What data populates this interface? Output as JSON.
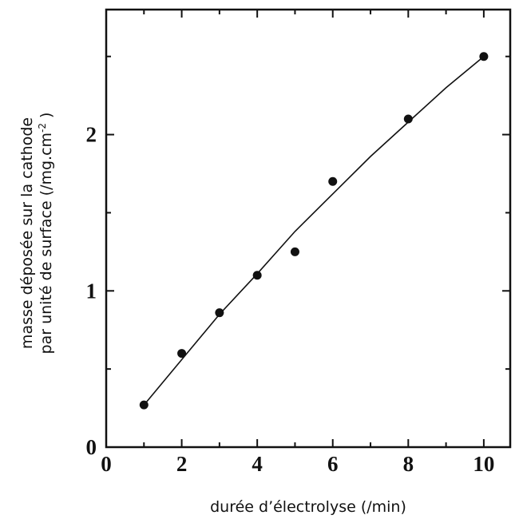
{
  "chart_data": {
    "type": "scatter",
    "xlabel": "durée d’électrolyse (/min)",
    "ylabel_line1": "masse déposée sur la cathode",
    "ylabel_line2_main": "par unité de surface (/mg.cm",
    "ylabel_line2_sup": "-2",
    "ylabel_line2_end": " )",
    "xlim": [
      0,
      10.7
    ],
    "ylim": [
      0,
      2.8
    ],
    "x_ticks": [
      0,
      2,
      4,
      6,
      8,
      10
    ],
    "y_ticks": [
      0,
      1,
      2
    ],
    "x_tick_labels": [
      "0",
      "2",
      "4",
      "6",
      "8",
      "10"
    ],
    "y_tick_labels": [
      "0",
      "1",
      "2"
    ],
    "grid": false,
    "points": [
      {
        "x": 1,
        "y": 0.27
      },
      {
        "x": 2,
        "y": 0.6
      },
      {
        "x": 3,
        "y": 0.86
      },
      {
        "x": 4,
        "y": 1.1
      },
      {
        "x": 5,
        "y": 1.25
      },
      {
        "x": 6,
        "y": 1.7
      },
      {
        "x": 8,
        "y": 2.1
      },
      {
        "x": 10,
        "y": 2.5
      }
    ],
    "fit_curve": [
      {
        "x": 1,
        "y": 0.27
      },
      {
        "x": 2,
        "y": 0.56
      },
      {
        "x": 3,
        "y": 0.85
      },
      {
        "x": 4,
        "y": 1.11
      },
      {
        "x": 5,
        "y": 1.38
      },
      {
        "x": 6,
        "y": 1.62
      },
      {
        "x": 7,
        "y": 1.86
      },
      {
        "x": 8,
        "y": 2.08
      },
      {
        "x": 9,
        "y": 2.3
      },
      {
        "x": 10,
        "y": 2.5
      }
    ]
  }
}
